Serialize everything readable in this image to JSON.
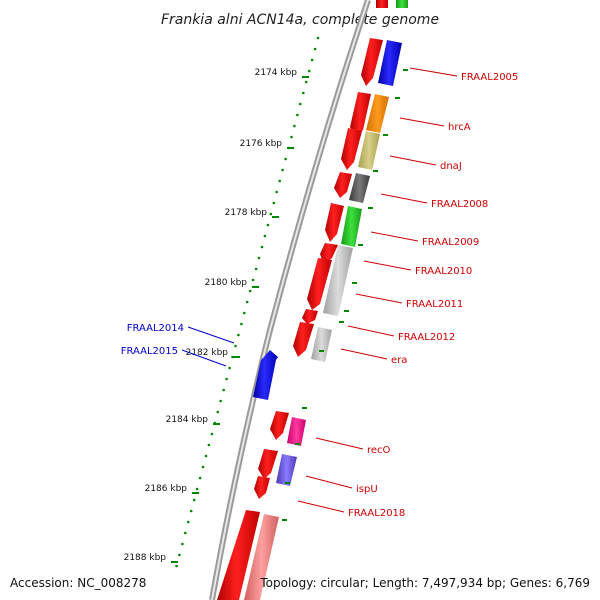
{
  "title": "Frankia alni ACN14a, complete genome",
  "footer": {
    "accession": "Accession: NC_008278",
    "topology": "Topology: circular; Length: 7,497,934 bp; Genes: 6,769"
  },
  "ticks": [
    {
      "label": "2174 kbp"
    },
    {
      "label": "2176 kbp"
    },
    {
      "label": "2178 kbp"
    },
    {
      "label": "2180 kbp"
    },
    {
      "label": "2182 kbp"
    },
    {
      "label": "2184 kbp"
    },
    {
      "label": "2186 kbp"
    },
    {
      "label": "2188 kbp"
    }
  ],
  "gene_labels": [
    {
      "name": "FRAAL2005",
      "strand": "forward"
    },
    {
      "name": "hrcA",
      "strand": "forward"
    },
    {
      "name": "dnaJ",
      "strand": "forward"
    },
    {
      "name": "FRAAL2008",
      "strand": "forward"
    },
    {
      "name": "FRAAL2009",
      "strand": "forward"
    },
    {
      "name": "FRAAL2010",
      "strand": "forward"
    },
    {
      "name": "FRAAL2011",
      "strand": "forward"
    },
    {
      "name": "FRAAL2012",
      "strand": "forward"
    },
    {
      "name": "era",
      "strand": "forward"
    },
    {
      "name": "recO",
      "strand": "forward"
    },
    {
      "name": "ispU",
      "strand": "forward"
    },
    {
      "name": "FRAAL2018",
      "strand": "forward"
    },
    {
      "name": "FRAAL2014",
      "strand": "reverse"
    },
    {
      "name": "FRAAL2015",
      "strand": "reverse"
    }
  ],
  "colors": {
    "cds_forward": "#ff0000",
    "cds_reverse": "#0000ff",
    "backbone": "#888888",
    "tick": "#008800",
    "label_forward": "#cc0000",
    "label_reverse": "#0000cc"
  }
}
